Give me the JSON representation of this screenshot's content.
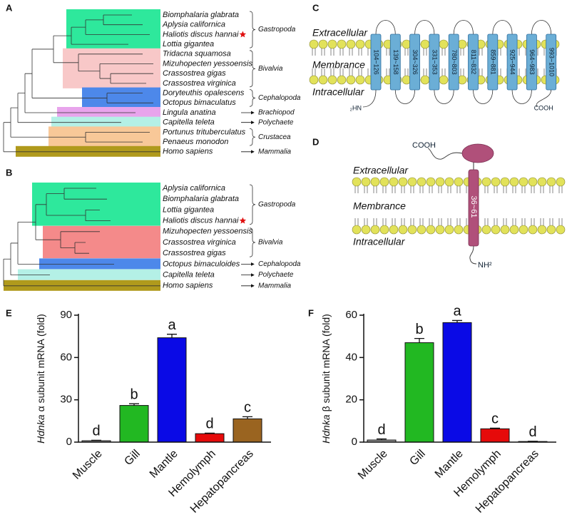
{
  "panels": {
    "a": "A",
    "b": "B",
    "c": "C",
    "d": "D",
    "e": "E",
    "f": "F"
  },
  "tree_a": {
    "leaves": [
      "Biomphalaria glabrata",
      "Aplysia californica",
      "Haliotis discus hannai",
      "Lottia gigantea",
      "Tridacna squamosa",
      "Mizuhopecten yessoensis",
      "Crassostrea gigas",
      "Crassostrea virginica",
      "Doryteuthis opalescens",
      "Octopus  bimaculatus",
      "Lingula anatina",
      "Capitella teleta",
      "Portunus trituberculatus",
      "Penaeus monodon",
      "Homo sapiens"
    ],
    "groups": [
      {
        "name": "Gastropoda",
        "color": "#2ee89c"
      },
      {
        "name": "Bivalvia",
        "color": "#f8c8c8"
      },
      {
        "name": "Cephalopoda",
        "color": "#4d88ea"
      },
      {
        "name": "Brachiopod",
        "color": "#e8a4ec"
      },
      {
        "name": "Polychaete",
        "color": "#b4f0e6"
      },
      {
        "name": "Crustacea",
        "color": "#f8c898"
      },
      {
        "name": "Mammalia",
        "color": "#b09a1c"
      }
    ]
  },
  "tree_b": {
    "leaves": [
      "Aplysia californica",
      "Biomphalaria glabrata",
      "Lottia gigantea",
      "Haliotis discus hannai",
      "Mizuhopecten yessoensis",
      "Crassostrea virginica",
      "Crassostrea gigas",
      "Octopus  bimaculoides",
      "Capitella teleta",
      "Homo sapiens"
    ],
    "groups": [
      {
        "name": "Gastropoda",
        "color": "#2ee89c"
      },
      {
        "name": "Bivalvia",
        "color": "#f48a8a"
      },
      {
        "name": "Cephalopoda",
        "color": "#4d88ea"
      },
      {
        "name": "Polychaete",
        "color": "#b4f0e6"
      },
      {
        "name": "Mammalia",
        "color": "#b09a1c"
      }
    ]
  },
  "membrane_c": {
    "layers": [
      "Extracellular",
      "Membrance",
      "Intracellular"
    ],
    "segments": [
      "104~126",
      "139~158",
      "304~326",
      "331~353",
      "780~803",
      "811~832",
      "859~881",
      "925~944",
      "964~983",
      "993~1010"
    ],
    "n_terminus": "₂HN",
    "c_terminus": "COOH",
    "color": "#6baed6"
  },
  "membrane_d": {
    "layers": [
      "Extracellular",
      "Membrance",
      "Intracellular"
    ],
    "segments": [
      "36~61"
    ],
    "n_terminus": "NH²",
    "c_terminus": "COOH",
    "color": "#b0507a"
  },
  "chart_data": [
    {
      "type": "bar",
      "ylabel_gene": "Hdnka",
      "ylabel": "α subunit mRNA (fold)",
      "categories": [
        "Muscle",
        "Gill",
        "Mantle",
        "Hemolymph",
        "Hepatopancreas"
      ],
      "values": [
        1,
        26,
        74,
        6,
        16.5
      ],
      "errors": [
        0.3,
        1.2,
        2.5,
        0.4,
        1.5
      ],
      "annotations": [
        "d",
        "b",
        "a",
        "d",
        "c"
      ],
      "colors": [
        "#999999",
        "#22b822",
        "#0a0ae6",
        "#e60a0a",
        "#9a6420"
      ],
      "ylim": [
        0,
        90
      ],
      "yticks": [
        0,
        30,
        60,
        90
      ]
    },
    {
      "type": "bar",
      "ylabel_gene": "Hdnka",
      "ylabel": "β subunit mRNA (fold)",
      "categories": [
        "Muscle",
        "Gill",
        "Mantle",
        "Hemolymph",
        "Hepatopancreas"
      ],
      "values": [
        1,
        47,
        56.5,
        6.3,
        0.3
      ],
      "errors": [
        0.5,
        2,
        1,
        0.3,
        0.1
      ],
      "annotations": [
        "d",
        "b",
        "a",
        "c",
        "d"
      ],
      "colors": [
        "#999999",
        "#22b822",
        "#0a0ae6",
        "#e60a0a",
        "#9a6420"
      ],
      "ylim": [
        0,
        60
      ],
      "yticks": [
        0,
        20,
        40,
        60
      ]
    }
  ]
}
